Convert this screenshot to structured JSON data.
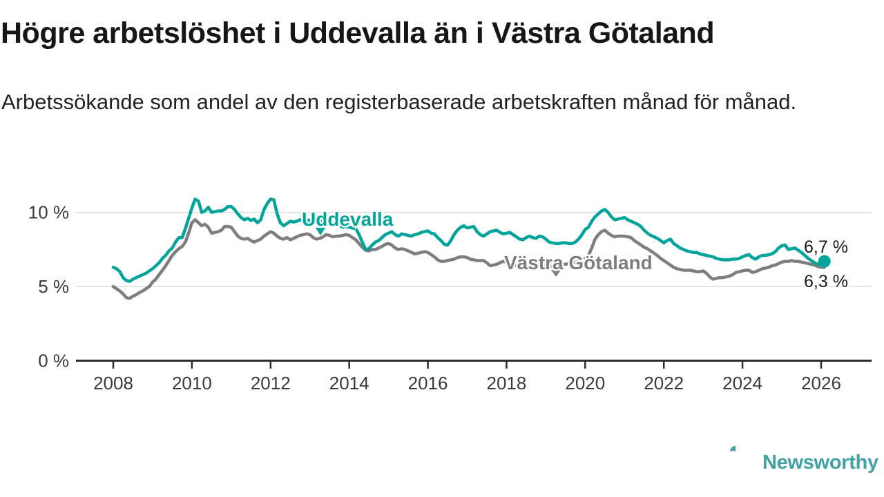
{
  "chart_data": {
    "type": "line",
    "title": "Högre arbetslöshet i Uddevalla än i Västra Götaland",
    "subtitle": "Arbetssökande som andel av den registerbaserade arbetskraften månad för månad.",
    "x_start": 2008,
    "points_per_year": 12,
    "x_ticks": [
      2008,
      2010,
      2012,
      2014,
      2016,
      2018,
      2020,
      2022,
      2024,
      2026
    ],
    "y_ticks": [
      {
        "value": 0,
        "label": "0 %"
      },
      {
        "value": 5,
        "label": "5 %"
      },
      {
        "value": 10,
        "label": "10 %"
      }
    ],
    "ylim": [
      0,
      11.6
    ],
    "grid": "horizontal",
    "legend": "inline-labels",
    "series": [
      {
        "name": "Uddevalla",
        "color": "#00a49a",
        "end_label": "6,7 %",
        "end_value": 6.7,
        "values": [
          6.3,
          6.2,
          6.0,
          5.6,
          5.4,
          5.35,
          5.5,
          5.6,
          5.7,
          5.8,
          5.9,
          6.05,
          6.2,
          6.4,
          6.6,
          6.9,
          7.1,
          7.4,
          7.6,
          8.0,
          8.3,
          8.3,
          8.9,
          9.6,
          10.3,
          10.9,
          10.75,
          10.0,
          10.1,
          10.35,
          10.0,
          10.05,
          10.1,
          10.1,
          10.2,
          10.4,
          10.4,
          10.2,
          9.9,
          9.65,
          9.5,
          9.6,
          9.45,
          9.55,
          9.3,
          9.5,
          10.2,
          10.6,
          10.9,
          10.85,
          9.9,
          9.3,
          9.1,
          9.25,
          9.4,
          9.35,
          9.4,
          9.5,
          9.45,
          9.5,
          9.45,
          9.4,
          9.3,
          9.35,
          9.45,
          9.55,
          9.4,
          9.3,
          9.2,
          9.1,
          9.0,
          9.05,
          9.0,
          8.95,
          8.9,
          8.5,
          8.0,
          7.5,
          7.55,
          7.8,
          8.0,
          8.1,
          8.3,
          8.5,
          8.6,
          8.7,
          8.5,
          8.4,
          8.55,
          8.5,
          8.45,
          8.4,
          8.5,
          8.55,
          8.65,
          8.7,
          8.75,
          8.6,
          8.55,
          8.3,
          8.1,
          7.85,
          7.8,
          8.1,
          8.5,
          8.8,
          9.0,
          9.1,
          8.95,
          9.0,
          9.05,
          8.7,
          8.5,
          8.4,
          8.55,
          8.7,
          8.75,
          8.8,
          8.65,
          8.55,
          8.6,
          8.65,
          8.5,
          8.35,
          8.2,
          8.15,
          8.3,
          8.4,
          8.3,
          8.25,
          8.4,
          8.35,
          8.2,
          8.0,
          7.95,
          7.9,
          7.9,
          7.95,
          7.95,
          7.9,
          7.9,
          8.0,
          8.2,
          8.5,
          8.85,
          9.0,
          9.4,
          9.7,
          9.9,
          10.1,
          10.2,
          10.0,
          9.7,
          9.5,
          9.55,
          9.6,
          9.65,
          9.5,
          9.4,
          9.3,
          9.2,
          9.05,
          8.8,
          8.6,
          8.45,
          8.35,
          8.25,
          8.1,
          7.95,
          8.1,
          8.2,
          7.9,
          7.75,
          7.6,
          7.5,
          7.4,
          7.35,
          7.3,
          7.3,
          7.2,
          7.15,
          7.1,
          7.05,
          7.0,
          6.9,
          6.85,
          6.8,
          6.8,
          6.8,
          6.85,
          6.85,
          6.9,
          7.0,
          7.1,
          7.15,
          6.95,
          6.85,
          7.0,
          7.1,
          7.1,
          7.15,
          7.2,
          7.35,
          7.6,
          7.75,
          7.8,
          7.5,
          7.55,
          7.6,
          7.45,
          7.3,
          7.1,
          6.9,
          6.75,
          6.6,
          6.5,
          6.6,
          6.7
        ]
      },
      {
        "name": "Västra Götaland",
        "color": "#7e7e7e",
        "end_label": "6,3 %",
        "end_value": 6.3,
        "values": [
          5.0,
          4.85,
          4.7,
          4.5,
          4.25,
          4.2,
          4.35,
          4.45,
          4.6,
          4.7,
          4.85,
          5.0,
          5.3,
          5.5,
          5.8,
          6.1,
          6.4,
          6.75,
          7.1,
          7.35,
          7.55,
          7.7,
          8.0,
          8.6,
          9.3,
          9.5,
          9.3,
          9.1,
          9.2,
          9.0,
          8.6,
          8.65,
          8.7,
          8.8,
          9.05,
          9.05,
          9.0,
          8.7,
          8.4,
          8.25,
          8.2,
          8.25,
          8.1,
          8.0,
          8.1,
          8.2,
          8.4,
          8.55,
          8.7,
          8.6,
          8.4,
          8.25,
          8.2,
          8.3,
          8.15,
          8.25,
          8.35,
          8.45,
          8.5,
          8.55,
          8.5,
          8.3,
          8.2,
          8.25,
          8.35,
          8.5,
          8.45,
          8.35,
          8.4,
          8.4,
          8.45,
          8.5,
          8.45,
          8.3,
          8.15,
          7.9,
          7.65,
          7.45,
          7.4,
          7.5,
          7.5,
          7.6,
          7.7,
          7.85,
          7.9,
          7.8,
          7.6,
          7.5,
          7.55,
          7.5,
          7.4,
          7.3,
          7.2,
          7.25,
          7.3,
          7.35,
          7.3,
          7.15,
          7.0,
          6.8,
          6.7,
          6.7,
          6.75,
          6.8,
          6.85,
          6.95,
          7.0,
          7.0,
          6.95,
          6.85,
          6.8,
          6.75,
          6.75,
          6.75,
          6.6,
          6.4,
          6.45,
          6.5,
          6.6,
          6.7,
          6.65,
          6.6,
          6.5,
          6.4,
          6.35,
          6.3,
          6.35,
          6.4,
          6.4,
          6.45,
          6.5,
          6.5,
          6.45,
          6.4,
          6.35,
          6.4,
          6.45,
          6.5,
          6.5,
          6.55,
          6.6,
          6.65,
          6.7,
          6.75,
          6.9,
          7.1,
          7.6,
          8.2,
          8.5,
          8.7,
          8.8,
          8.6,
          8.45,
          8.35,
          8.4,
          8.4,
          8.4,
          8.35,
          8.3,
          8.1,
          7.95,
          7.8,
          7.65,
          7.55,
          7.4,
          7.25,
          7.1,
          6.9,
          6.75,
          6.6,
          6.45,
          6.3,
          6.2,
          6.15,
          6.1,
          6.1,
          6.1,
          6.05,
          6.0,
          6.0,
          6.05,
          5.9,
          5.65,
          5.5,
          5.55,
          5.6,
          5.6,
          5.65,
          5.7,
          5.8,
          5.95,
          6.0,
          6.05,
          6.1,
          6.1,
          5.95,
          6.0,
          6.1,
          6.2,
          6.25,
          6.3,
          6.4,
          6.45,
          6.55,
          6.65,
          6.7,
          6.7,
          6.75,
          6.7,
          6.7,
          6.65,
          6.6,
          6.55,
          6.5,
          6.45,
          6.35,
          6.3,
          6.3
        ]
      }
    ]
  },
  "branding": {
    "logo_text": "Newsworthy",
    "logo_icon": "speech-bubble-bar-chart-icon",
    "color": "#40a2a2"
  },
  "colors": {
    "grid": "#dcdcdc",
    "axis": "#2d2d2d",
    "axis_text": "#3b3b3b",
    "title_text": "#161616",
    "body_text": "#222222"
  }
}
